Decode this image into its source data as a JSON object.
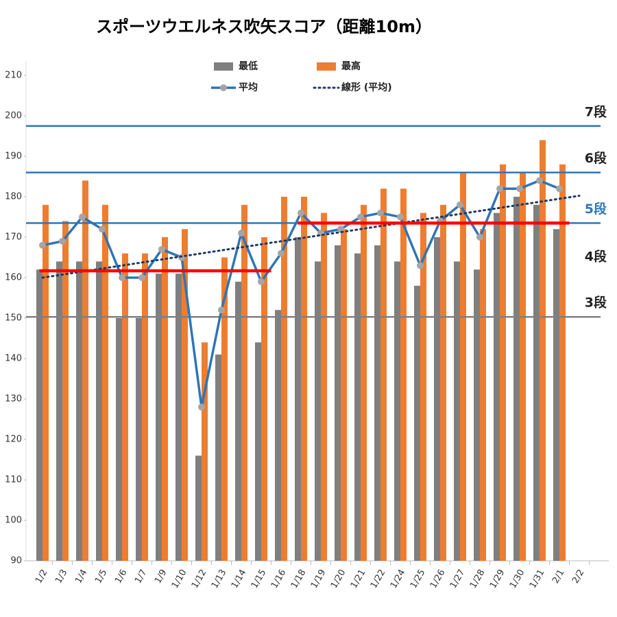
{
  "chart_data": {
    "type": "bar",
    "title": "スポーツウエルネス吹矢スコア（距離10m）",
    "categories": [
      "1/2",
      "1/3",
      "1/4",
      "1/5",
      "1/6",
      "1/7",
      "1/9",
      "1/10",
      "1/12",
      "1/13",
      "1/14",
      "1/15",
      "1/16",
      "1/18",
      "1/19",
      "1/20",
      "1/21",
      "1/22",
      "1/24",
      "1/25",
      "1/26",
      "1/27",
      "1/28",
      "1/29",
      "1/30",
      "1/31",
      "2/1",
      "2/2"
    ],
    "series": [
      {
        "name": "最低",
        "type": "bar",
        "color": "#7f7f7f",
        "values": [
          162,
          164,
          164,
          164,
          150,
          150,
          161,
          161,
          116,
          141,
          159,
          144,
          152,
          170,
          164,
          168,
          166,
          168,
          164,
          158,
          170,
          164,
          162,
          176,
          180,
          178,
          172,
          null
        ]
      },
      {
        "name": "最高",
        "type": "bar",
        "color": "#ed7d31",
        "values": [
          178,
          174,
          184,
          178,
          166,
          166,
          170,
          172,
          144,
          165,
          178,
          170,
          180,
          180,
          176,
          172,
          178,
          182,
          182,
          176,
          178,
          186,
          172,
          188,
          186,
          194,
          188,
          null
        ]
      },
      {
        "name": "平均",
        "type": "line",
        "color": "#2e75b6",
        "marker_color": "#a5a5a5",
        "values": [
          168,
          169,
          175,
          172,
          160,
          160,
          167,
          165,
          128,
          152,
          171,
          159,
          166,
          176,
          171,
          172,
          175,
          176,
          175,
          163,
          174,
          178,
          170,
          182,
          182,
          184,
          182,
          null
        ]
      },
      {
        "name": "線形 (平均)",
        "type": "trend",
        "color": "#1f3864",
        "values": [
          160,
          160.75,
          161.5,
          162.25,
          163,
          163.75,
          164.5,
          165.25,
          166,
          166.75,
          167.5,
          168.25,
          169,
          169.75,
          170.5,
          171.25,
          172,
          172.75,
          173.5,
          174.25,
          175,
          175.75,
          176.5,
          177.25,
          178,
          178.75,
          179.5,
          180.25
        ]
      }
    ],
    "levels": [
      {
        "label": "7段",
        "value": 197.5,
        "color": "#2e75b6",
        "line": true
      },
      {
        "label": "6段",
        "value": 186,
        "color": "#2e75b6",
        "line": true
      },
      {
        "label": "5段",
        "value": 173.5,
        "color": "#2e75b6",
        "line": true,
        "label_color": "#2e75b6"
      },
      {
        "label": "4段",
        "value": 161.7,
        "line": false
      },
      {
        "label": "3段",
        "value": 150.3,
        "color": "#808080",
        "line": true
      }
    ],
    "period_lines": [
      {
        "value": 161.7,
        "from": "1/2",
        "to": "1/15",
        "color": "#ff0000"
      },
      {
        "value": 173.5,
        "from": "1/18",
        "to": "2/1",
        "color": "#ff0000"
      }
    ],
    "ylim": [
      90,
      210
    ],
    "yticks": [
      90,
      100,
      110,
      120,
      130,
      140,
      150,
      160,
      170,
      180,
      190,
      200,
      210
    ],
    "grid": false
  }
}
